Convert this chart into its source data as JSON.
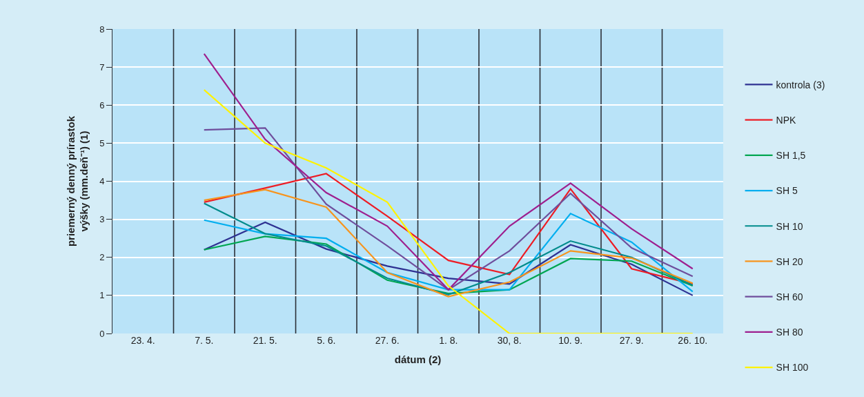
{
  "chart_data": {
    "type": "line",
    "xlabel": "dátum (2)",
    "ylabel": "priemerný denný prírastok výšky (mm.deň⁻¹) (1)",
    "categories": [
      "23. 4.",
      "7. 5.",
      "21. 5.",
      "5. 6.",
      "27. 6.",
      "1. 8.",
      "30, 8.",
      "10. 9.",
      "27. 9.",
      "26. 10."
    ],
    "ylim": [
      0,
      8
    ],
    "yticks": [
      0,
      1,
      2,
      3,
      4,
      5,
      6,
      7,
      8
    ],
    "grid": true,
    "legend": "right",
    "marker": "none",
    "line_style": "solid",
    "series": [
      {
        "name": "kontrola (3)",
        "color": "#2e3192",
        "values": [
          null,
          2.2,
          2.92,
          2.22,
          1.77,
          1.45,
          1.3,
          2.33,
          1.82,
          1.0
        ]
      },
      {
        "name": "NPK",
        "color": "#ed1c24",
        "values": [
          null,
          3.45,
          3.82,
          4.2,
          3.08,
          1.92,
          1.55,
          3.8,
          1.7,
          1.3
        ]
      },
      {
        "name": "SH 1,5",
        "color": "#00a651",
        "values": [
          null,
          2.2,
          2.55,
          2.35,
          1.4,
          1.05,
          1.15,
          1.97,
          1.9,
          1.25
        ]
      },
      {
        "name": "SH 5",
        "color": "#00aeef",
        "values": [
          null,
          2.98,
          2.62,
          2.5,
          1.6,
          1.15,
          1.15,
          3.15,
          2.4,
          1.1
        ]
      },
      {
        "name": "SH 10",
        "color": "#008b8b",
        "values": [
          null,
          3.42,
          2.62,
          2.3,
          1.45,
          1.02,
          1.6,
          2.43,
          2.0,
          1.27
        ]
      },
      {
        "name": "SH 20",
        "color": "#f7941d",
        "values": [
          null,
          3.5,
          3.78,
          3.32,
          1.6,
          0.97,
          1.35,
          2.17,
          1.98,
          1.32
        ]
      },
      {
        "name": "SH 60",
        "color": "#6f4e9c",
        "values": [
          null,
          5.35,
          5.4,
          3.4,
          2.3,
          1.15,
          2.17,
          3.68,
          2.25,
          1.5
        ]
      },
      {
        "name": "SH 80",
        "color": "#9e1f8e",
        "values": [
          null,
          7.35,
          5.1,
          3.7,
          2.82,
          1.15,
          2.82,
          3.95,
          2.75,
          1.7
        ]
      },
      {
        "name": "SH 100",
        "color": "#fff200",
        "values": [
          null,
          6.4,
          5.0,
          4.35,
          3.45,
          1.25,
          0,
          0,
          0,
          0
        ]
      }
    ]
  }
}
